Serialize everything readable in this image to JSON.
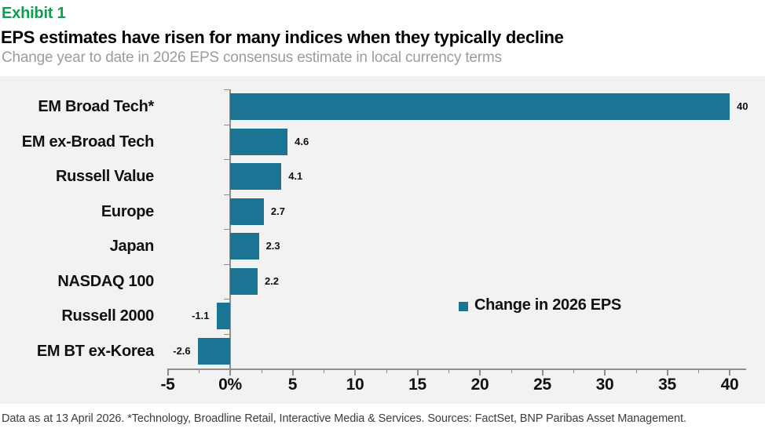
{
  "header": {
    "exhibit_label": "Exhibit 1",
    "title": "EPS estimates have risen for many indices when they typically decline",
    "subtitle": "Change year to date in 2026 EPS consensus estimate in local currency terms"
  },
  "chart_data": {
    "type": "bar",
    "orientation": "horizontal",
    "title": "EPS estimates have risen for many indices when they typically decline",
    "subtitle": "Change year to date in 2026 EPS consensus estimate in local currency terms",
    "categories": [
      "EM Broad Tech*",
      "EM ex-Broad Tech",
      "Russell Value",
      "Europe",
      "Japan",
      "NASDAQ 100",
      "Russell 2000",
      "EM BT ex-Korea"
    ],
    "values": [
      40,
      4.6,
      4.1,
      2.7,
      2.3,
      2.2,
      -1.1,
      -2.6
    ],
    "value_labels": [
      "40",
      "4.6",
      "4.1",
      "2.7",
      "2.3",
      "2.2",
      "-1.1",
      "-2.6"
    ],
    "xlabel": "",
    "ylabel": "",
    "xlim": [
      -5,
      41.3
    ],
    "grid": false,
    "x_ticks": [
      {
        "value": -5,
        "label": "-5"
      },
      {
        "value": 0,
        "label": "0%"
      },
      {
        "value": 5,
        "label": "5"
      },
      {
        "value": 10,
        "label": "10"
      },
      {
        "value": 15,
        "label": "15"
      },
      {
        "value": 20,
        "label": "20"
      },
      {
        "value": 25,
        "label": "25"
      },
      {
        "value": 30,
        "label": "30"
      },
      {
        "value": 35,
        "label": "35"
      },
      {
        "value": 40,
        "label": "40"
      }
    ],
    "minor_tick_values": [
      -2.5,
      2.5,
      7.5,
      12.5,
      17.5,
      22.5,
      27.5,
      32.5,
      37.5
    ],
    "legend": [
      {
        "label": "Change in 2026 EPS",
        "color": "#1a7493"
      }
    ],
    "legend_position": "middle-right",
    "colors": {
      "bar": "#1a7493",
      "plot_bg": "#f2f2f2",
      "axis": "#8e8e8e",
      "exhibit_green": "#0d9e4f",
      "subtitle_gray": "#9c9c9c",
      "footer_gray": "#3d3d3d"
    }
  },
  "footer": {
    "text": "Data as at 13 April 2026. *Technology, Broadline Retail, Interactive Media & Services. Sources: FactSet, BNP Paribas Asset Management."
  }
}
